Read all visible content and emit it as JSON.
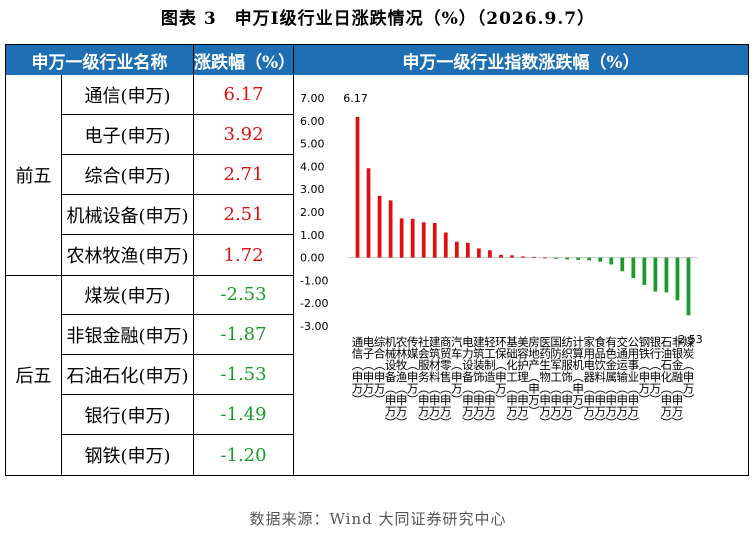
{
  "title": "图表 3　申万Ⅰ级行业日涨跌情况（%）（2026.9.7）",
  "table": {
    "header_name": "申万一级行业名称",
    "header_change": "涨跌幅（%）",
    "top_group_label": "前五",
    "bottom_group_label": "后五",
    "top_rows": [
      {
        "name": "通信(申万)",
        "change": "6.17"
      },
      {
        "name": "电子(申万)",
        "change": "3.92"
      },
      {
        "name": "综合(申万)",
        "change": "2.71"
      },
      {
        "name": "机械设备(申万)",
        "change": "2.51"
      },
      {
        "name": "农林牧渔(申万)",
        "change": "1.72"
      }
    ],
    "bottom_rows": [
      {
        "name": "煤炭(申万)",
        "change": "-2.53"
      },
      {
        "name": "非银金融(申万)",
        "change": "-1.87"
      },
      {
        "name": "石油石化(申万)",
        "change": "-1.53"
      },
      {
        "name": "银行(申万)",
        "change": "-1.49"
      },
      {
        "name": "钢铁(申万)",
        "change": "-1.20"
      }
    ]
  },
  "chart_header": "申万一级行业指数涨跌幅（%）",
  "chart_data": {
    "type": "bar",
    "categories": [
      "通信(申万)",
      "电子(申万)",
      "综合(申万)",
      "机械设备(申万)",
      "农林牧渔(申万)",
      "传媒(申万)",
      "社会服务(申万)",
      "建筑材料(申万)",
      "商贸零售(申万)",
      "汽车(申万)",
      "电力设备(申万)",
      "建筑装饰(申万)",
      "轻工制造(申万)",
      "环保(申万)",
      "基础化工(申万)",
      "美容护理(申万)",
      "房地产(申万)",
      "医药生物(申万)",
      "国防军工(申万)",
      "纺织服饰(申万)",
      "计算机(申万)",
      "家用电器(申万)",
      "食品饮料(申万)",
      "有色金属(申万)",
      "交通运输(申万)",
      "公用事业(申万)",
      "钢铁(申万)",
      "银行(申万)",
      "石油石化(申万)",
      "非银金融(申万)",
      "煤炭(申万)"
    ],
    "values": [
      6.17,
      3.92,
      2.71,
      2.51,
      1.72,
      1.7,
      1.55,
      1.52,
      1.1,
      0.7,
      0.65,
      0.4,
      0.32,
      0.12,
      0.1,
      0.05,
      0.03,
      0.0,
      -0.05,
      -0.08,
      -0.1,
      -0.12,
      -0.18,
      -0.3,
      -0.6,
      -0.9,
      -1.2,
      -1.49,
      -1.53,
      -1.87,
      -2.53
    ],
    "ylim": [
      -3.0,
      7.0
    ],
    "yticks": [
      "7.00",
      "6.00",
      "5.00",
      "4.00",
      "3.00",
      "2.00",
      "1.00",
      "0.00",
      "-1.00",
      "-2.00",
      "-3.00"
    ],
    "max_label": "6.17",
    "min_label": "-2.53",
    "positive_color": "#e01010",
    "negative_color": "#1a9a2a",
    "grid": false,
    "legend": "none"
  },
  "source": "数据来源：Wind 大同证券研究中心"
}
